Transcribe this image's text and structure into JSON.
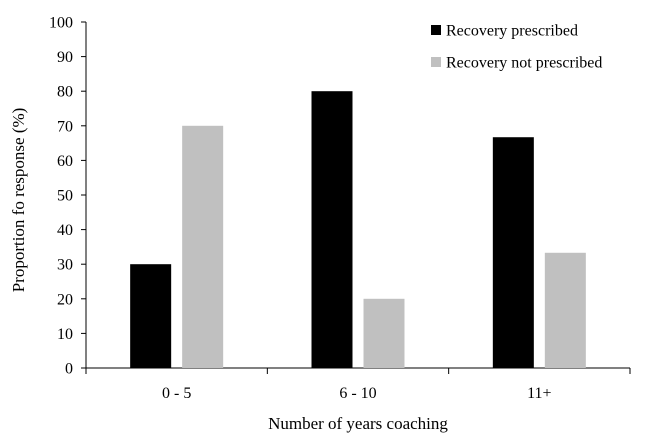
{
  "chart_data": {
    "type": "bar",
    "categories": [
      "0 - 5",
      "6 - 10",
      "11+"
    ],
    "series": [
      {
        "name": "Recovery prescribed",
        "values": [
          30,
          80,
          66.7
        ],
        "color": "#000000"
      },
      {
        "name": "Recovery not prescribed",
        "values": [
          70,
          20,
          33.3
        ],
        "color": "#c0c0c0"
      }
    ],
    "xlabel": "Number of years coaching",
    "ylabel": "Proportion fo response (%)",
    "ylim": [
      0,
      100
    ],
    "yticks": [
      0,
      10,
      20,
      30,
      40,
      50,
      60,
      70,
      80,
      90,
      100
    ],
    "grid": false,
    "legend_position": "top-right"
  }
}
